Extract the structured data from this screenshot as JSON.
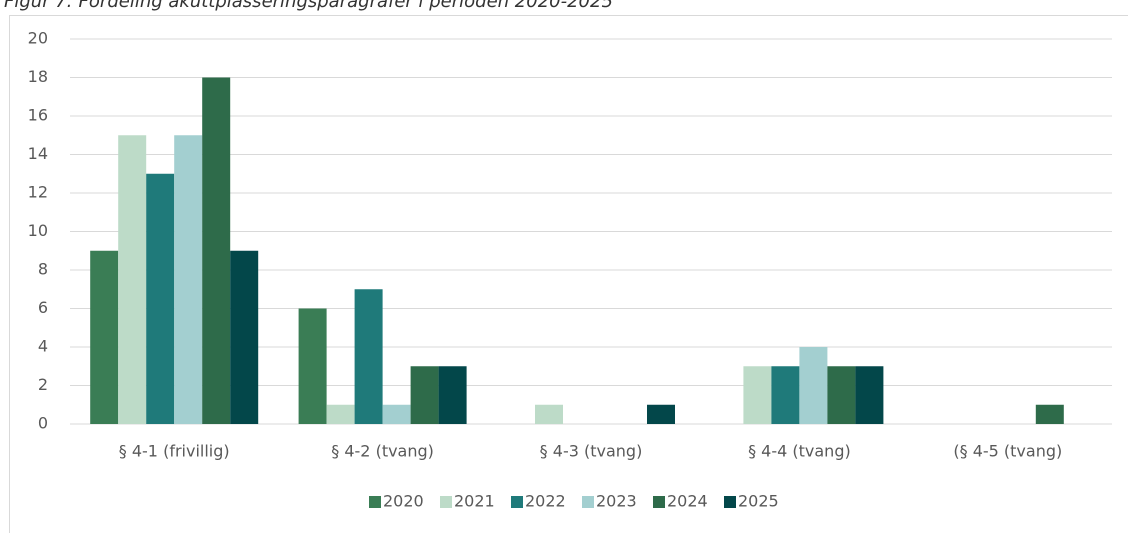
{
  "chart_data": {
    "type": "bar",
    "title": "Figur 7: Fordeling akuttplasseringsparagrafer i perioden 2020-2025",
    "categories": [
      "§ 4-1 (frivillig)",
      "§ 4-2 (tvang)",
      "§ 4-3 (tvang)",
      "§ 4-4 (tvang)",
      "(§ 4-5 (tvang)"
    ],
    "series": [
      {
        "name": "2020",
        "color": "#3a7d55",
        "values": [
          9,
          6,
          0,
          0,
          0
        ]
      },
      {
        "name": "2021",
        "color": "#bddbc8",
        "values": [
          15,
          1,
          1,
          3,
          0
        ]
      },
      {
        "name": "2022",
        "color": "#1f7a7a",
        "values": [
          13,
          7,
          0,
          3,
          0
        ]
      },
      {
        "name": "2023",
        "color": "#a3cfd0",
        "values": [
          15,
          1,
          0,
          4,
          0
        ]
      },
      {
        "name": "2024",
        "color": "#2e6b4a",
        "values": [
          18,
          3,
          0,
          3,
          1
        ]
      },
      {
        "name": "2025",
        "color": "#03474a",
        "values": [
          9,
          3,
          1,
          3,
          0
        ]
      }
    ],
    "ylim": [
      0,
      20
    ],
    "yticks": [
      0,
      2,
      4,
      6,
      8,
      10,
      12,
      14,
      16,
      18,
      20
    ],
    "grid": true,
    "legend": "bottom"
  }
}
